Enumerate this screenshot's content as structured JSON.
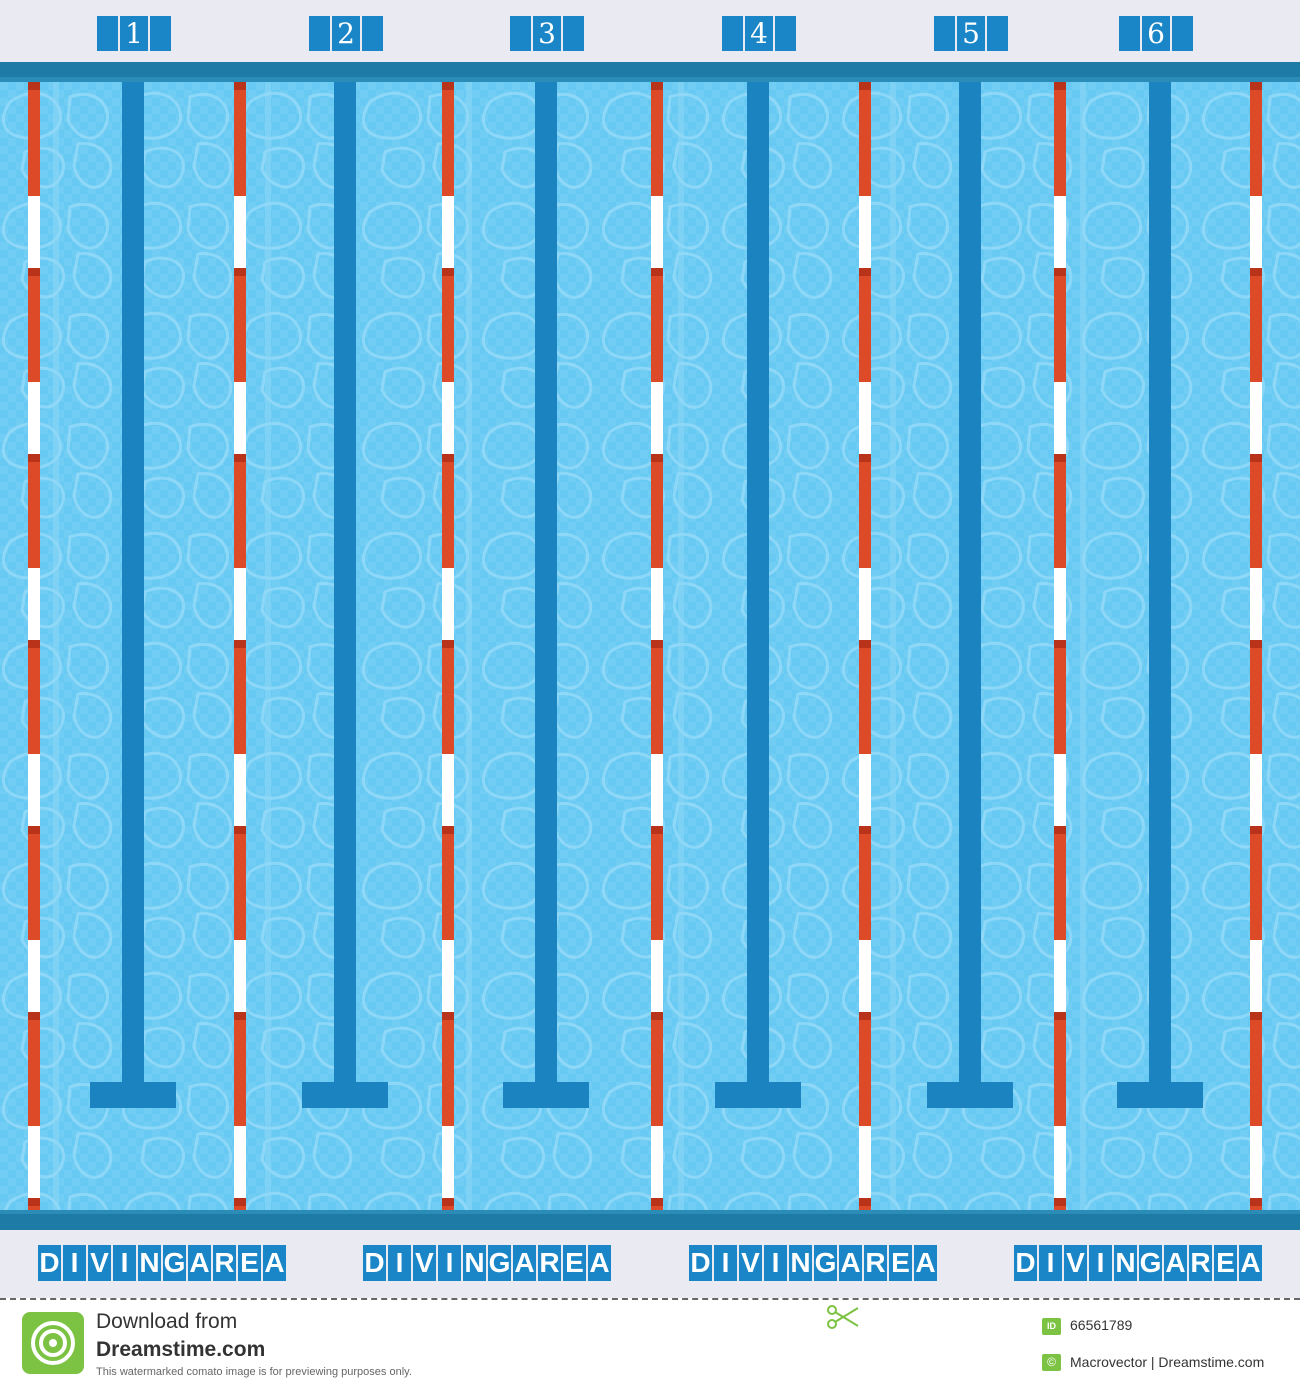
{
  "pool": {
    "lane_numbers": [
      "1",
      "2",
      "3",
      "4",
      "5",
      "6"
    ],
    "bottom_labels": [
      {
        "first": "DIVING",
        "second": "AREA"
      },
      {
        "first": "DIVING",
        "second": "AREA"
      },
      {
        "first": "DIVING",
        "second": "AREA"
      },
      {
        "first": "DIVING",
        "second": "AREA"
      }
    ],
    "colors": {
      "water": "#68caf3",
      "lane_marking": "#1b83bf",
      "rope_red": "#dd4a28",
      "rope_white": "#ffffff",
      "deck": "#eaeaf2",
      "label_bg": "#1a86c7"
    }
  },
  "footer": {
    "download_line1": "Download from",
    "download_line2": "Dreamstime.com",
    "note": "This watermarked comato image is for previewing purposes only.",
    "id_badge": "ID",
    "id_value": "66561789",
    "credit_icon": "copyright-icon",
    "credit": "Macrovector | Dreamstime.com"
  }
}
